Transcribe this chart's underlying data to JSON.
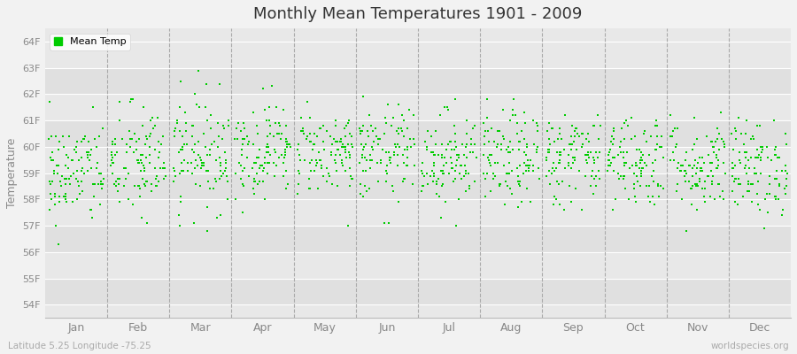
{
  "title": "Monthly Mean Temperatures 1901 - 2009",
  "ylabel": "Temperature",
  "xlabel_bottom": "Latitude 5.25 Longitude -75.25",
  "watermark": "worldspecies.org",
  "legend_label": "Mean Temp",
  "dot_color": "#00cc00",
  "fig_bg_color": "#f2f2f2",
  "plot_bg_color": "#e8e8e8",
  "yticks": [
    54,
    55,
    56,
    57,
    58,
    59,
    60,
    61,
    62,
    63,
    64
  ],
  "ylim": [
    53.5,
    64.5
  ],
  "months": [
    "Jan",
    "Feb",
    "Mar",
    "Apr",
    "May",
    "Jun",
    "Jul",
    "Aug",
    "Sep",
    "Oct",
    "Nov",
    "Dec"
  ],
  "month_means": [
    59.0,
    59.4,
    59.8,
    59.9,
    59.8,
    59.7,
    59.6,
    59.5,
    59.6,
    59.5,
    59.3,
    59.2
  ],
  "month_stds": [
    1.0,
    1.1,
    1.1,
    0.9,
    0.8,
    0.9,
    0.9,
    0.9,
    0.9,
    0.9,
    0.9,
    0.9
  ],
  "n_years": 109,
  "seed": 42,
  "dot_size": 3,
  "grid_color": "#ffffff",
  "dashed_line_color": "#aaaaaa",
  "tick_color": "#888888",
  "title_color": "#333333",
  "band_colors": [
    "#e0e0e0",
    "#e8e8e8"
  ]
}
